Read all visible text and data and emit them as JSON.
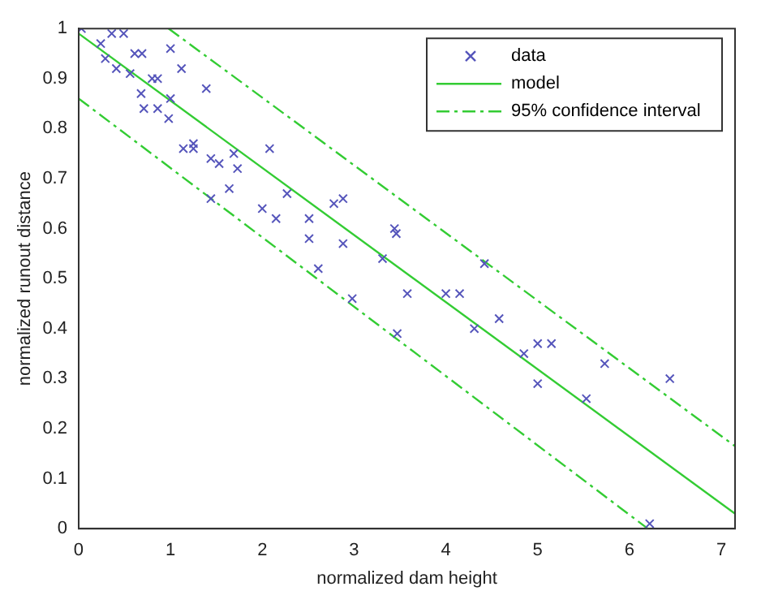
{
  "chart_data": {
    "type": "scatter",
    "xlabel": "normalized dam height",
    "ylabel": "normalized runout distance",
    "xlim": [
      0,
      7.15
    ],
    "ylim": [
      0,
      1
    ],
    "xticks": [
      0,
      1,
      2,
      3,
      4,
      5,
      6,
      7
    ],
    "yticks": [
      0,
      0.1,
      0.2,
      0.3,
      0.4,
      0.5,
      0.6,
      0.7,
      0.8,
      0.9,
      1
    ],
    "grid": false,
    "legend": "top right",
    "series": [
      {
        "name": "data",
        "type": "scatter",
        "marker": "cross",
        "color": "#5555bb",
        "x": [
          0.03,
          0.24,
          0.36,
          0.49,
          0.29,
          0.41,
          0.61,
          0.69,
          1.0,
          0.56,
          0.8,
          0.86,
          1.12,
          0.68,
          1.0,
          0.71,
          0.86,
          0.98,
          1.39,
          1.14,
          1.25,
          1.25,
          1.44,
          1.53,
          1.69,
          1.73,
          2.08,
          1.64,
          1.44,
          2.27,
          2.0,
          2.15,
          2.51,
          2.51,
          2.88,
          2.78,
          2.88,
          2.61,
          3.44,
          3.46,
          3.31,
          2.98,
          3.58,
          4.0,
          4.15,
          4.42,
          4.31,
          4.58,
          4.85,
          5.0,
          5.15,
          5.0,
          5.53,
          5.73,
          6.44,
          6.22,
          3.47
        ],
        "values": [
          1.0,
          0.97,
          0.99,
          0.99,
          0.94,
          0.92,
          0.95,
          0.95,
          0.96,
          0.91,
          0.9,
          0.9,
          0.92,
          0.87,
          0.86,
          0.84,
          0.84,
          0.82,
          0.88,
          0.76,
          0.77,
          0.76,
          0.74,
          0.73,
          0.75,
          0.72,
          0.76,
          0.68,
          0.66,
          0.67,
          0.64,
          0.62,
          0.62,
          0.58,
          0.66,
          0.65,
          0.57,
          0.52,
          0.6,
          0.59,
          0.54,
          0.46,
          0.47,
          0.47,
          0.47,
          0.53,
          0.4,
          0.42,
          0.35,
          0.37,
          0.37,
          0.29,
          0.26,
          0.33,
          0.3,
          0.01,
          0.39
        ]
      },
      {
        "name": "model",
        "type": "line",
        "line_style": "solid",
        "color": "#33cc33",
        "x": [
          0,
          7.15
        ],
        "values": [
          0.99,
          0.03
        ]
      },
      {
        "name": "95% confidence interval",
        "type": "line",
        "line_style": "dashed",
        "color": "#33cc33",
        "x": [
          0.98,
          7.15
        ],
        "values": [
          1.0,
          0.165
        ]
      },
      {
        "type": "line",
        "line_style": "dashed",
        "color": "#33cc33",
        "x": [
          0,
          6.2
        ],
        "values": [
          0.86,
          0
        ]
      }
    ]
  }
}
